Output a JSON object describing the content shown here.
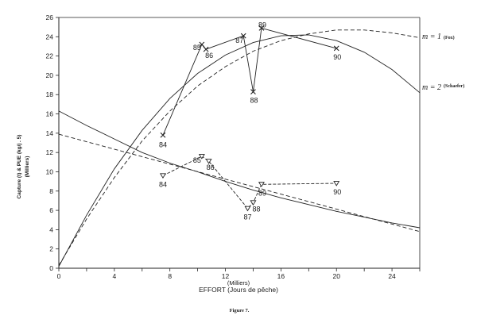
{
  "chart_data": {
    "type": "line",
    "title": "",
    "caption": "Figure 7.",
    "ylabel": "Capture (t) & PUE (kg/j . 5)",
    "ylabel_sub": "(Milliers)",
    "xlabel": "EFFORT (Jours de pêche)",
    "xlabel_sub": "(Milliers)",
    "xlim": [
      0,
      26
    ],
    "ylim": [
      0,
      26
    ],
    "xticks": [
      "0",
      "4",
      "8",
      "12",
      "16",
      "20",
      "24"
    ],
    "yticks": [
      "0",
      "2",
      "4",
      "6",
      "8",
      "10",
      "12",
      "14",
      "16",
      "18",
      "20",
      "22",
      "24",
      "26"
    ],
    "grid": false,
    "annotations": [
      {
        "text": "m = 1",
        "note": "(Fox)"
      },
      {
        "text": "m = 2",
        "note": "(Schaefer)"
      }
    ],
    "series": [
      {
        "marker": "x",
        "points": [
          {
            "x": 7.5,
            "y": 13.8,
            "label": "84"
          },
          {
            "x": 10.3,
            "y": 23.2,
            "label": "85"
          },
          {
            "x": 10.6,
            "y": 22.7,
            "label": "86"
          },
          {
            "x": 13.3,
            "y": 24.1,
            "label": "87"
          },
          {
            "x": 14.0,
            "y": 18.3,
            "label": "88"
          },
          {
            "x": 14.6,
            "y": 24.9,
            "label": "89"
          },
          {
            "x": 20.0,
            "y": 22.8,
            "label": "90"
          }
        ]
      },
      {
        "marker": "triangle-down",
        "points": [
          {
            "x": 7.5,
            "y": 9.6,
            "label": "84"
          },
          {
            "x": 10.3,
            "y": 11.6,
            "label": "85"
          },
          {
            "x": 10.8,
            "y": 11.1,
            "label": "86"
          },
          {
            "x": 13.6,
            "y": 6.2,
            "label": "87"
          },
          {
            "x": 14.0,
            "y": 6.8,
            "label": "88"
          },
          {
            "x": 14.6,
            "y": 8.7,
            "label": "89"
          },
          {
            "x": 20.0,
            "y": 8.8,
            "label": "90"
          }
        ]
      },
      {
        "style": "dashed",
        "points": [
          [
            0,
            0.3
          ],
          [
            2,
            5.1
          ],
          [
            4,
            9.4
          ],
          [
            6,
            13.2
          ],
          [
            8,
            16.3
          ],
          [
            10,
            18.9
          ],
          [
            12,
            20.9
          ],
          [
            14,
            22.5
          ],
          [
            16,
            23.6
          ],
          [
            18,
            24.3
          ],
          [
            20,
            24.7
          ],
          [
            22,
            24.7
          ],
          [
            24,
            24.4
          ],
          [
            26,
            23.9
          ]
        ]
      },
      {
        "style": "solid",
        "points": [
          [
            0,
            0.2
          ],
          [
            2,
            5.5
          ],
          [
            4,
            10.3
          ],
          [
            6,
            14.3
          ],
          [
            8,
            17.6
          ],
          [
            10,
            20.2
          ],
          [
            12,
            22.1
          ],
          [
            14,
            23.4
          ],
          [
            16,
            24.1
          ],
          [
            18,
            24.2
          ],
          [
            20,
            23.6
          ],
          [
            22,
            22.4
          ],
          [
            24,
            20.6
          ],
          [
            26,
            18.2
          ]
        ]
      },
      {
        "style": "solid",
        "points": [
          [
            0,
            16.3
          ],
          [
            2,
            14.8
          ],
          [
            4,
            13.4
          ],
          [
            6,
            12.0
          ],
          [
            8,
            10.9
          ],
          [
            10,
            10.0
          ],
          [
            12,
            9.0
          ],
          [
            14,
            8.1
          ],
          [
            16,
            7.3
          ],
          [
            18,
            6.6
          ],
          [
            20,
            5.9
          ],
          [
            22,
            5.3
          ],
          [
            24,
            4.7
          ],
          [
            26,
            4.2
          ]
        ]
      },
      {
        "style": "dashed",
        "points": [
          [
            0,
            13.9
          ],
          [
            26,
            3.8
          ]
        ]
      }
    ]
  }
}
